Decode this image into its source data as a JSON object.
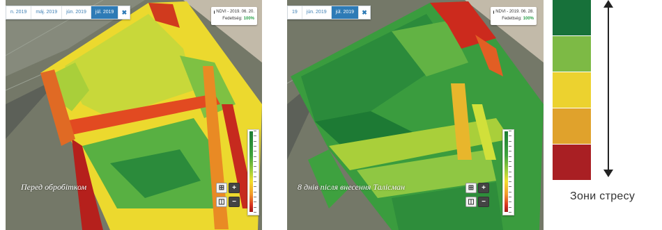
{
  "left_panel": {
    "tabs": [
      "n. 2019",
      "máj. 2019",
      "jún. 2019",
      "júl. 2019"
    ],
    "active_tab": "júl. 2019",
    "close_label": "✖",
    "info_title": "NDVI - 2019. 06. 20.",
    "info_cloud_label": "Fedettség:",
    "info_cloud_value": "100%",
    "caption": "Перед обробітком"
  },
  "right_panel": {
    "tabs": [
      "19",
      "jún. 2019",
      "júl. 2019"
    ],
    "active_tab": "júl. 2019",
    "close_label": "✖",
    "info_title": "NDVI - 2019. 06. 28.",
    "info_cloud_label": "Fedettség:",
    "info_cloud_value": "100%",
    "caption": "8 днів після внесення  Талісман"
  },
  "map_controls": {
    "layers_label": "⊞",
    "zoom_in_label": "+",
    "stack_label": "◫",
    "zoom_out_label": "−"
  },
  "stress_scale": {
    "colors": [
      "#17713a",
      "#7dba45",
      "#ecd22f",
      "#e0a22c",
      "#a91f23"
    ],
    "label": "Зони стресу"
  }
}
